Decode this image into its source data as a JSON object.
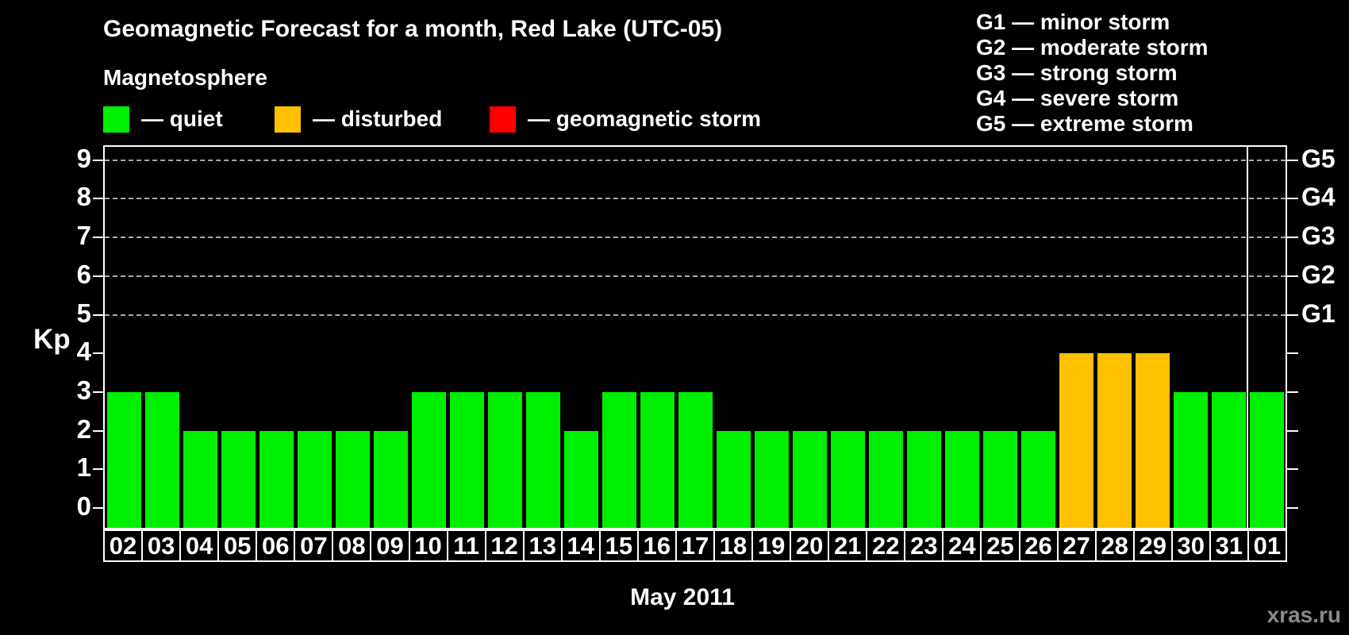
{
  "title": "Geomagnetic Forecast for a month, Red Lake (UTC-05)",
  "subtitle": "Magnetosphere",
  "watermark": "xras.ru",
  "palette": {
    "quiet": "#00EE00",
    "disturbed": "#FFC000",
    "storm": "#FF0000",
    "grid": "#AAAAAA",
    "axis": "#FFFFFF",
    "background": "#000000",
    "watermark_color": "#8A8A8A"
  },
  "legend": {
    "items": [
      {
        "key": "quiet",
        "label": "— quiet"
      },
      {
        "key": "disturbed",
        "label": "— disturbed"
      },
      {
        "key": "storm",
        "label": "— geomagnetic storm"
      }
    ]
  },
  "g_legend": [
    "G1 — minor storm",
    "G2 — moderate storm",
    "G3 — strong storm",
    "G4 — severe storm",
    "G5 — extreme storm"
  ],
  "chart_data": {
    "type": "bar",
    "title": "Geomagnetic Forecast for a month, Red Lake (UTC-05)",
    "xlabel": "May 2011",
    "ylabel": "Kp",
    "categories": [
      "02",
      "03",
      "04",
      "05",
      "06",
      "07",
      "08",
      "09",
      "10",
      "11",
      "12",
      "13",
      "14",
      "15",
      "16",
      "17",
      "18",
      "19",
      "20",
      "21",
      "22",
      "23",
      "24",
      "25",
      "26",
      "27",
      "28",
      "29",
      "30",
      "31",
      "01"
    ],
    "values": [
      3,
      3,
      2,
      2,
      2,
      2,
      2,
      2,
      3,
      3,
      3,
      3,
      2,
      3,
      3,
      3,
      2,
      2,
      2,
      2,
      2,
      2,
      2,
      2,
      2,
      4,
      4,
      4,
      3,
      3,
      3
    ],
    "levels": [
      "quiet",
      "quiet",
      "quiet",
      "quiet",
      "quiet",
      "quiet",
      "quiet",
      "quiet",
      "quiet",
      "quiet",
      "quiet",
      "quiet",
      "quiet",
      "quiet",
      "quiet",
      "quiet",
      "quiet",
      "quiet",
      "quiet",
      "quiet",
      "quiet",
      "quiet",
      "quiet",
      "quiet",
      "quiet",
      "disturbed",
      "disturbed",
      "disturbed",
      "quiet",
      "quiet",
      "quiet"
    ],
    "ylim": [
      -0.5,
      9.4
    ],
    "y_ticks": [
      0,
      1,
      2,
      3,
      4,
      5,
      6,
      7,
      8,
      9
    ],
    "g_levels": [
      {
        "label": "G1",
        "kp": 5
      },
      {
        "label": "G2",
        "kp": 6
      },
      {
        "label": "G3",
        "kp": 7
      },
      {
        "label": "G4",
        "kp": 8
      },
      {
        "label": "G5",
        "kp": 9
      }
    ],
    "separator_after_category": "31",
    "grid": "dashed horizontal lines at G storm levels only",
    "legend_position": "top"
  }
}
